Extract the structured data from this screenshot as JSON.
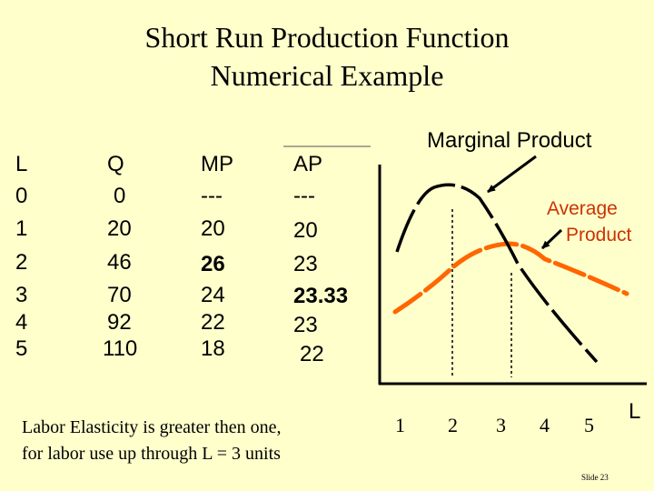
{
  "slide": {
    "title_line1": "Short Run Production Function",
    "title_line2": "Numerical Example",
    "note_line1": "Labor Elasticity is greater then one,",
    "note_line2": "for labor use up through L = 3 units",
    "slide_number": "Slide 23"
  },
  "table": {
    "headers": [
      "L",
      "Q",
      "MP",
      "AP"
    ],
    "rows": [
      [
        "0",
        "0",
        "---",
        "---"
      ],
      [
        "1",
        "20",
        "20",
        "20"
      ],
      [
        "2",
        "46",
        "26",
        "23"
      ],
      [
        "3",
        "70",
        "24",
        "23.33"
      ],
      [
        "4",
        "92",
        "22",
        "23"
      ],
      [
        "5",
        "110",
        "18",
        "22"
      ]
    ]
  },
  "chart": {
    "mp_label": "Marginal Product",
    "ap_label_line1": "Average",
    "ap_label_line2": "Product",
    "x_ticks": [
      "1",
      "2",
      "3",
      "4",
      "5"
    ],
    "x_axis_label": "L",
    "colors": {
      "mp_curve": "#000000",
      "ap_curve": "#ff6600",
      "arrow": "#000000",
      "guide": "#000000"
    }
  }
}
